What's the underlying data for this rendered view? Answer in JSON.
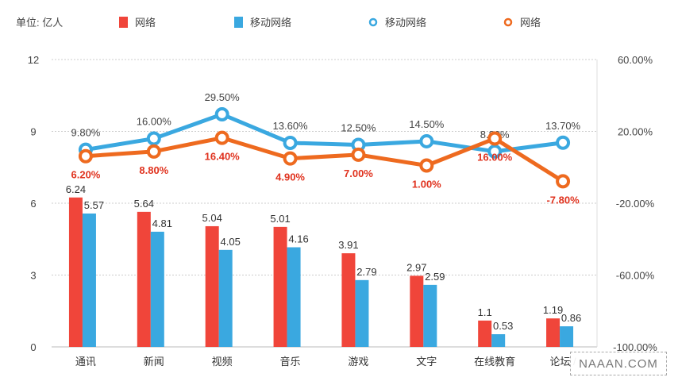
{
  "chart_data": {
    "type": "bar",
    "unit_label": "单位: 亿人",
    "categories": [
      "通讯",
      "新闻",
      "视频",
      "音乐",
      "游戏",
      "文字",
      "在线教育",
      "论坛 / "
    ],
    "series": [
      {
        "name": "网络",
        "kind": "bar",
        "axis": "left",
        "color": "#f0453a",
        "values": [
          6.24,
          5.64,
          5.04,
          5.01,
          3.91,
          2.97,
          1.1,
          1.19
        ],
        "labels": [
          "6.24",
          "5.64",
          "5.04",
          "5.01",
          "3.91",
          "2.97",
          "1.1",
          "1.19"
        ]
      },
      {
        "name": "移动网络",
        "kind": "bar",
        "axis": "left",
        "color": "#3aa8e0",
        "values": [
          5.57,
          4.81,
          4.05,
          4.16,
          2.79,
          2.59,
          0.53,
          0.86
        ],
        "labels": [
          "5.57",
          "4.81",
          "4.05",
          "4.16",
          "2.79",
          "2.59",
          "0.53",
          "0.86"
        ]
      },
      {
        "name": "移动网络",
        "kind": "line",
        "axis": "right",
        "color": "#3aa8e0",
        "values": [
          9.8,
          16.0,
          29.5,
          13.6,
          12.5,
          14.5,
          8.8,
          13.7
        ],
        "labels": [
          "9.80%",
          "16.00%",
          "29.50%",
          "13.60%",
          "12.50%",
          "14.50%",
          "8.80%",
          "13.70%"
        ]
      },
      {
        "name": "网络",
        "kind": "line",
        "axis": "right",
        "color": "#ee6a1f",
        "values": [
          6.2,
          8.8,
          16.4,
          4.9,
          7.0,
          1.0,
          16.0,
          -7.8
        ],
        "labels": [
          "6.20%",
          "8.80%",
          "16.40%",
          "4.90%",
          "7.00%",
          "1.00%",
          "16.00%",
          "-7.80%"
        ]
      }
    ],
    "left_axis": {
      "ylim": [
        0,
        12
      ],
      "ticks": [
        "0",
        "3",
        "6",
        "9",
        "12"
      ]
    },
    "right_axis": {
      "ylim": [
        -100,
        60
      ],
      "ticks": [
        "-100.00%",
        "-60.00%",
        "-20.00%",
        "20.00%",
        "60.00%"
      ]
    },
    "legend": [
      "网络",
      "移动网络",
      "移动网络",
      "网络"
    ],
    "legend_position": "top",
    "grid": true
  },
  "watermark": "NAAAN.COM"
}
